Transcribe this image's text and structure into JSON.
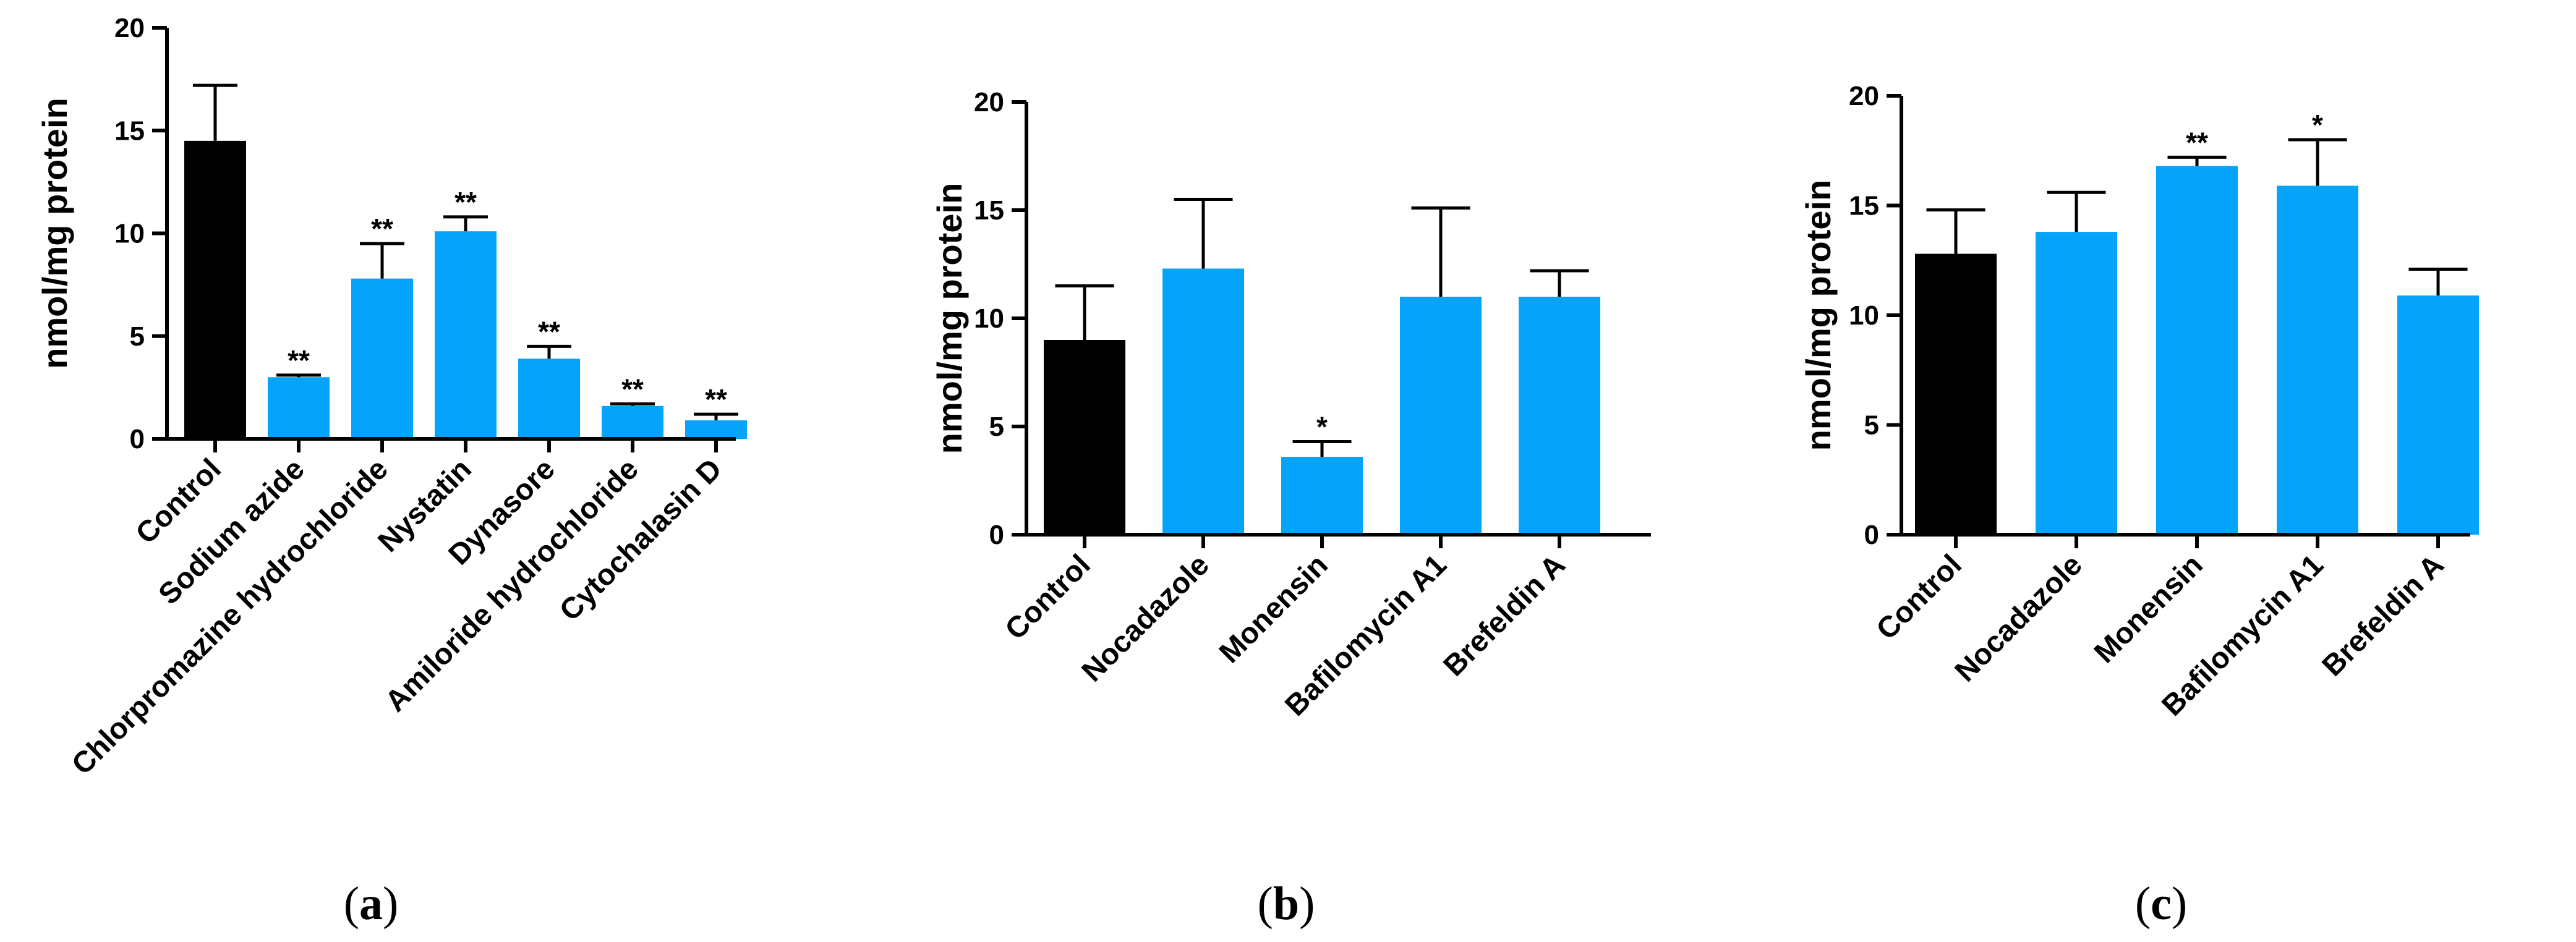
{
  "colors": {
    "control": "#000000",
    "treatment": "#06A3FB"
  },
  "chart_data": [
    {
      "type": "bar",
      "panel": "a",
      "panel_label": "a",
      "ylabel": "nmol/mg protein",
      "ylim": [
        0,
        20
      ],
      "yticks": [
        0,
        5,
        10,
        15,
        20
      ],
      "ytick_labels": [
        "0",
        "5",
        "10",
        "15",
        "20"
      ],
      "categories": [
        "Control",
        "Sodium azide",
        "Chlorpromazine hydrochloride",
        "Nystatin",
        "Dynasore",
        "Amiloride hydrochloride",
        "Cytochalasin D"
      ],
      "values": [
        14.5,
        3.0,
        7.8,
        10.1,
        3.9,
        1.6,
        0.9
      ],
      "errors": [
        2.7,
        0.1,
        1.7,
        0.7,
        0.6,
        0.1,
        0.3
      ],
      "significance": [
        "",
        "**",
        "**",
        "**",
        "**",
        "**",
        "**"
      ],
      "bar_colors": [
        "control",
        "treatment",
        "treatment",
        "treatment",
        "treatment",
        "treatment",
        "treatment"
      ]
    },
    {
      "type": "bar",
      "panel": "b",
      "panel_label": "b",
      "ylabel": "nmol/mg protein",
      "ylim": [
        0,
        20
      ],
      "yticks": [
        0,
        5,
        10,
        15,
        20
      ],
      "ytick_labels": [
        "0",
        "5",
        "10",
        "15",
        "20"
      ],
      "categories": [
        "Control",
        "Nocadazole",
        "Monensin",
        "Bafilomycin A1",
        "Brefeldin A"
      ],
      "values": [
        9.0,
        12.3,
        3.6,
        11.0,
        11.0
      ],
      "errors": [
        2.5,
        3.2,
        0.7,
        4.1,
        1.2
      ],
      "significance": [
        "",
        "",
        "*",
        "",
        ""
      ],
      "bar_colors": [
        "control",
        "treatment",
        "treatment",
        "treatment",
        "treatment"
      ]
    },
    {
      "type": "bar",
      "panel": "c",
      "panel_label": "c",
      "ylabel": "nmol/mg protein",
      "ylim": [
        0,
        20
      ],
      "yticks": [
        0,
        5,
        10,
        15,
        20
      ],
      "ytick_labels": [
        "0",
        "5",
        "10",
        "15",
        "20"
      ],
      "categories": [
        "Control",
        "Nocadazole",
        "Monensin",
        "Bafilomycin A1",
        "Brefeldin A"
      ],
      "values": [
        12.8,
        13.8,
        16.8,
        15.9,
        10.9
      ],
      "errors": [
        2.0,
        1.8,
        0.4,
        2.1,
        1.2
      ],
      "significance": [
        "",
        "",
        "**",
        "*",
        ""
      ],
      "bar_colors": [
        "control",
        "treatment",
        "treatment",
        "treatment",
        "treatment"
      ]
    }
  ]
}
